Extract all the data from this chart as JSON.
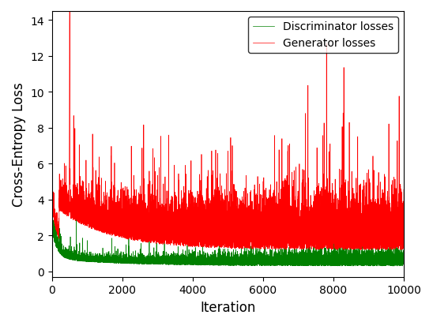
{
  "title": "",
  "xlabel": "Iteration",
  "ylabel": "Cross-Entropy Loss",
  "xlim": [
    0,
    10000
  ],
  "ylim": [
    -0.3,
    14.5
  ],
  "yticks": [
    0,
    2,
    4,
    6,
    8,
    10,
    12,
    14
  ],
  "xticks": [
    0,
    2000,
    4000,
    6000,
    8000,
    10000
  ],
  "discriminator_color": "#008000",
  "generator_color": "#ff0000",
  "legend_entries": [
    "Discriminator losses",
    "Generator losses"
  ],
  "n_points": 10000,
  "seed": 42,
  "background_color": "#ffffff",
  "linewidth": 0.5
}
